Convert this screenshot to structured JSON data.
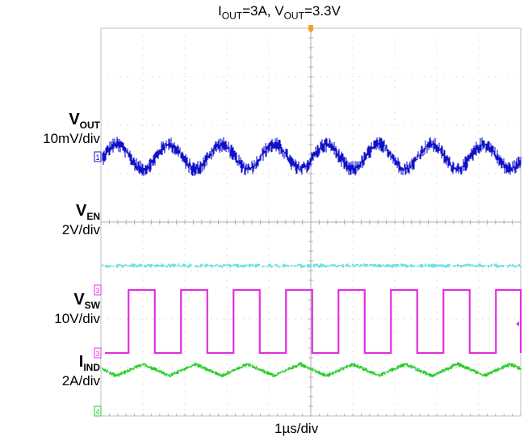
{
  "title": {
    "i_sub": "OUT",
    "i_val": "=3A, ",
    "v_sub": "OUT",
    "v_val": "=3.3V"
  },
  "channels": [
    {
      "name": "V",
      "sub": "OUT",
      "scale": "10mV/div",
      "marker": "1"
    },
    {
      "name": "V",
      "sub": "EN",
      "scale": "2V/div",
      "marker": "2"
    },
    {
      "name": "V",
      "sub": "SW",
      "scale": "10V/div",
      "marker": "3"
    },
    {
      "name": "I",
      "sub": "IND",
      "scale": "2A/div",
      "marker": "4"
    }
  ],
  "xlabel": "1µs/div",
  "chart_data": {
    "type": "line",
    "title": "I_OUT=3A, V_OUT=3.3V",
    "xlabel": "1µs/div",
    "x_divisions": 10,
    "y_divisions": 8,
    "grid": true,
    "switching_period_divisions": 1.25,
    "series": [
      {
        "name": "V_OUT",
        "color": "#1010c8",
        "scale": "10mV/div",
        "shape": "ripple",
        "center_div": 5.35,
        "amplitude_div": 0.25,
        "noise_div": 0.18
      },
      {
        "name": "V_EN",
        "color": "#22d4d4",
        "scale": "2V/div",
        "shape": "dc",
        "center_div": 3.1,
        "amplitude_div": 0.0,
        "noise_div": 0.05
      },
      {
        "name": "V_SW",
        "color": "#e030e0",
        "scale": "10V/div",
        "shape": "square",
        "low_div": 1.3,
        "high_div": 2.6,
        "duty": 0.5
      },
      {
        "name": "I_IND",
        "color": "#22cc22",
        "scale": "2A/div",
        "shape": "triangle",
        "center_div": 0.95,
        "amplitude_div": 0.12,
        "noise_div": 0.05
      }
    ]
  }
}
